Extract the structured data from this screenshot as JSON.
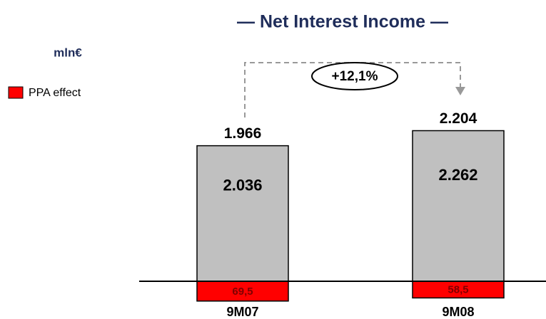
{
  "chart_data": {
    "type": "bar",
    "title": "— Net Interest Income —",
    "unit_label": "mln€",
    "categories": [
      "9M07",
      "9M08"
    ],
    "values": [
      2036,
      2262
    ],
    "value_labels": [
      "2.036",
      "2.262"
    ],
    "color": "#c0c0c0",
    "series": [
      {
        "name": "PPA effect",
        "color": "#ff0000",
        "values": [
          -69.5,
          -58.5
        ],
        "value_labels": [
          "69,5",
          "58,5"
        ]
      }
    ],
    "totals": [
      1966,
      2204
    ],
    "totals_labels": [
      "1.966",
      "2.204"
    ],
    "annotation": "+12,1%"
  }
}
